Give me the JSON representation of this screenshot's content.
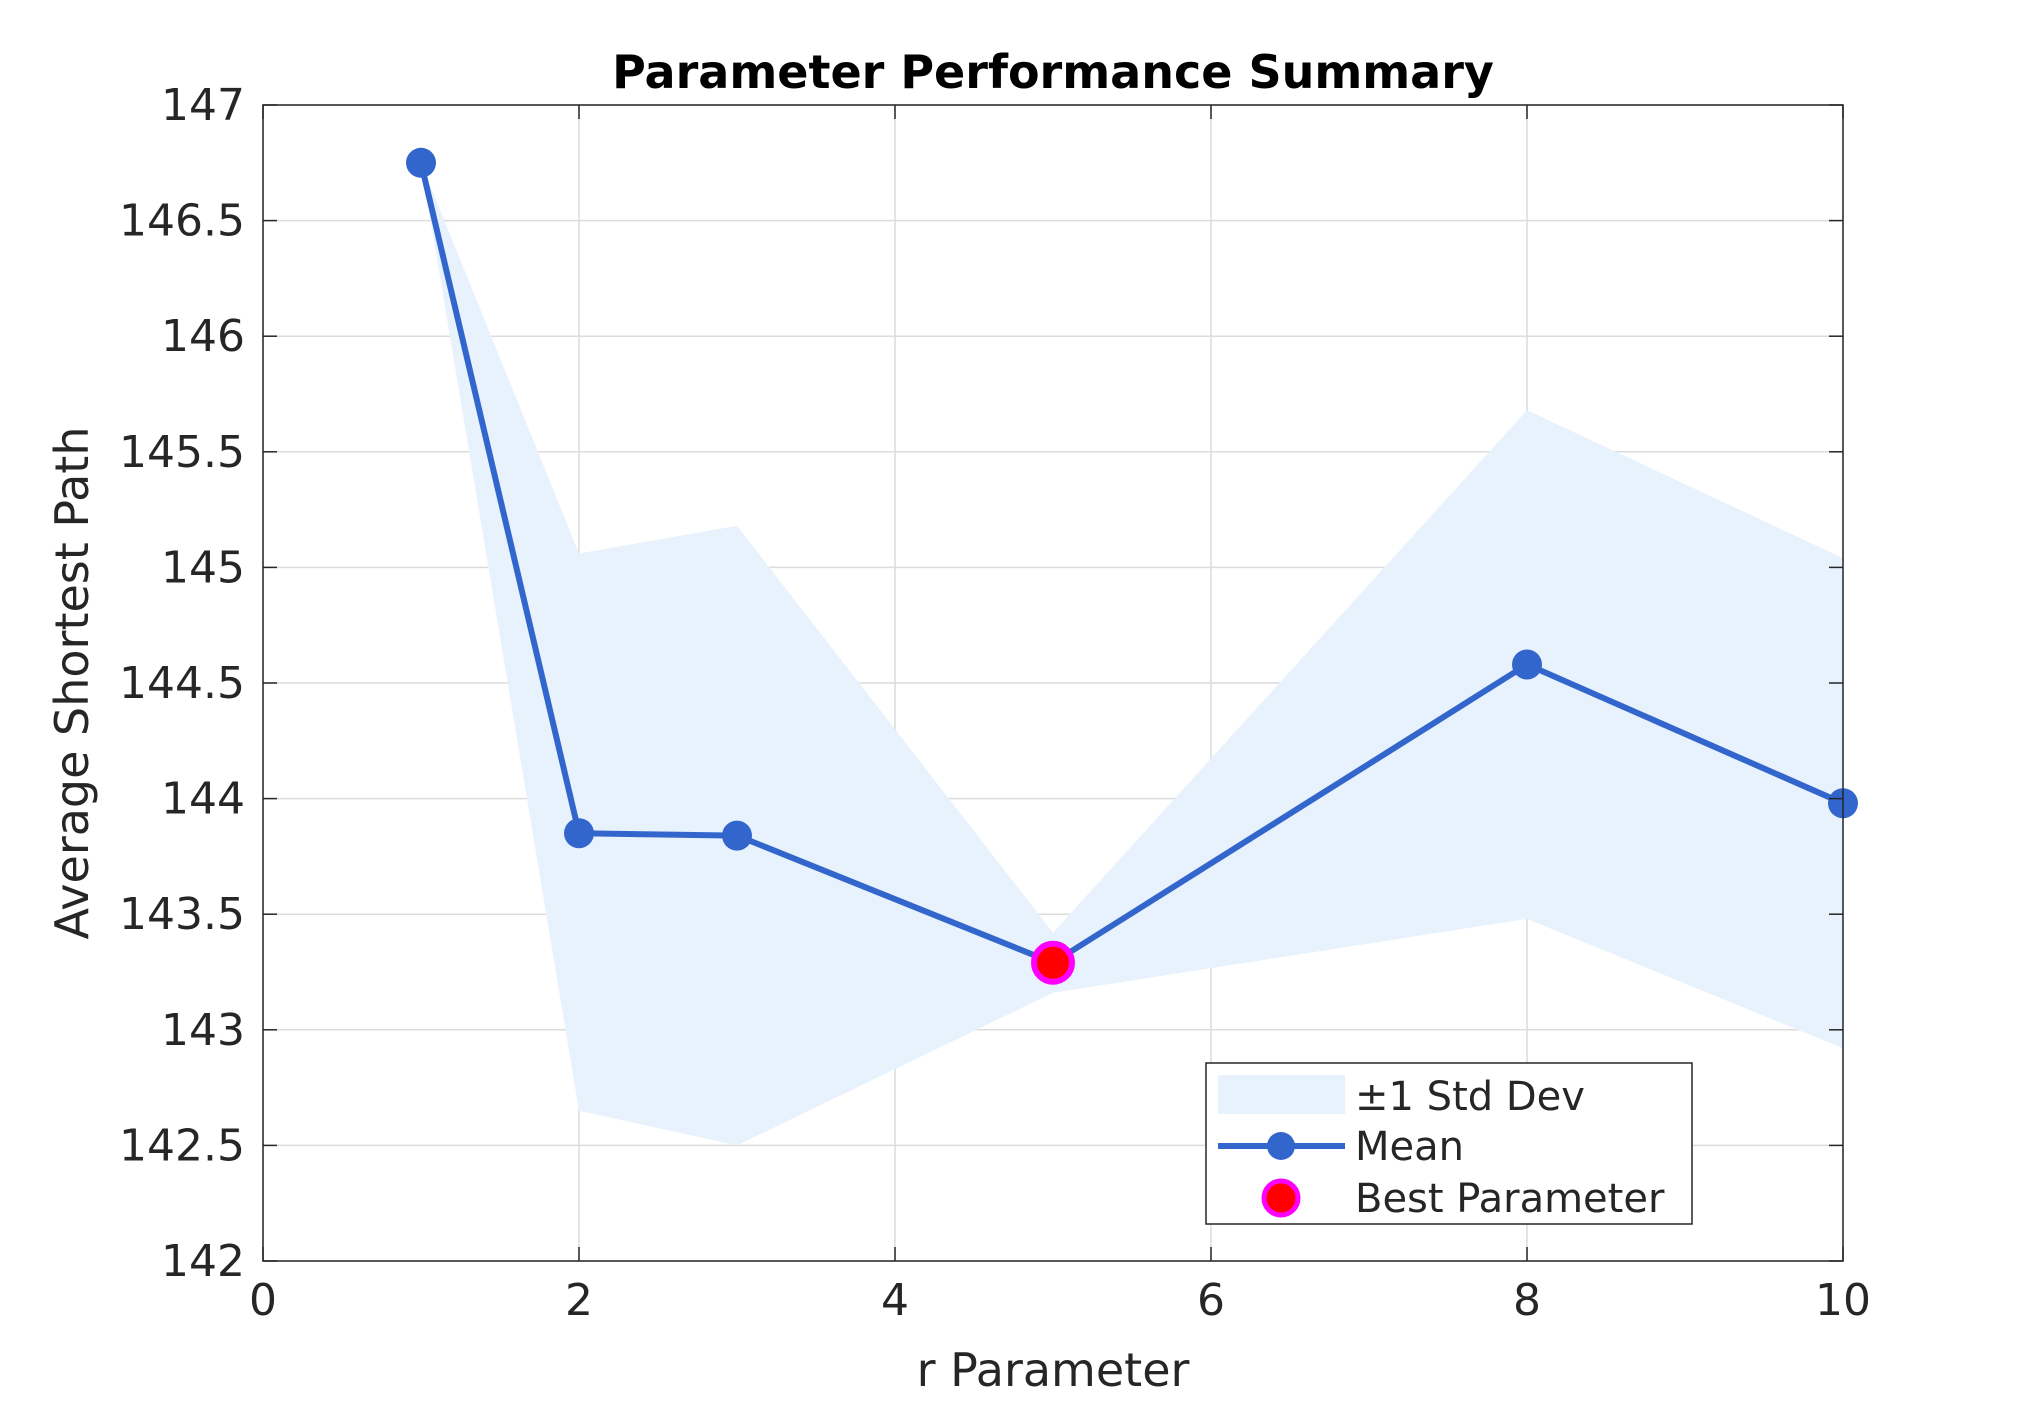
{
  "chart_data": {
    "type": "line",
    "title": "Parameter Performance Summary",
    "xlabel": "r Parameter",
    "ylabel": "Average Shortest Path",
    "xlim": [
      0,
      10
    ],
    "ylim": [
      142,
      147
    ],
    "xticks": [
      0,
      2,
      4,
      6,
      8,
      10
    ],
    "yticks": [
      142,
      142.5,
      143,
      143.5,
      144,
      144.5,
      145,
      145.5,
      146,
      146.5,
      147
    ],
    "grid": true,
    "legend_position": "bottom-right",
    "x": [
      1,
      2,
      3,
      5,
      8,
      10
    ],
    "series": [
      {
        "name": "Mean",
        "values": [
          146.75,
          143.85,
          143.84,
          143.29,
          144.58,
          143.98
        ],
        "color": "#3366cc"
      }
    ],
    "band": {
      "name": "±1 Std Dev",
      "upper": [
        146.75,
        145.06,
        145.18,
        143.42,
        145.68,
        145.04
      ],
      "lower": [
        146.75,
        142.65,
        142.5,
        143.16,
        143.48,
        142.92
      ],
      "color": "#e8f2fc"
    },
    "best": {
      "name": "Best Parameter",
      "x": 5,
      "y": 143.29,
      "fill": "#ff0000",
      "edge": "#ff00ff"
    }
  }
}
